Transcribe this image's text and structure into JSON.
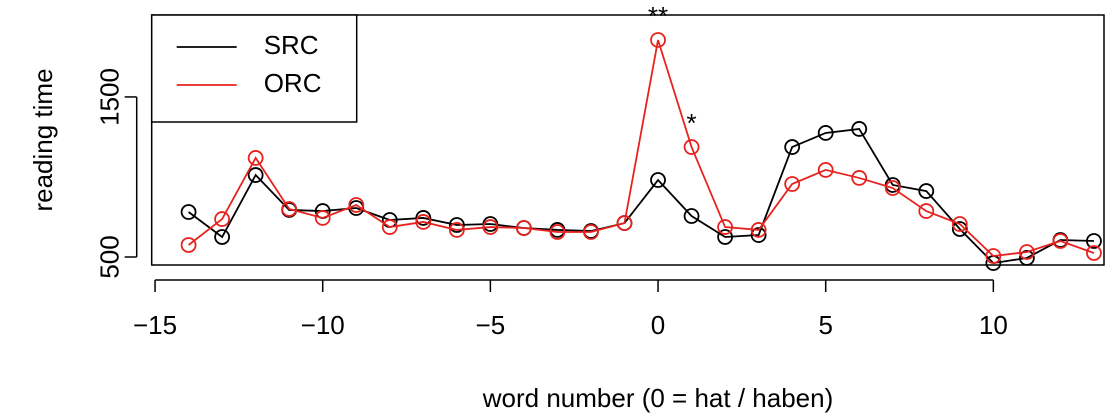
{
  "chart_data": {
    "type": "line",
    "x_label": "word number (0 = hat / haben)",
    "y_label": "reading time",
    "x": [
      -14,
      -13,
      -12,
      -11,
      -10,
      -9,
      -8,
      -7,
      -6,
      -5,
      -4,
      -3,
      -2,
      -1,
      0,
      1,
      2,
      3,
      4,
      5,
      6,
      7,
      8,
      9,
      10,
      11,
      12,
      13
    ],
    "series": [
      {
        "name": "SRC",
        "color": "#000000",
        "values": [
          781,
          625,
          1012,
          794,
          787,
          806,
          731,
          744,
          700,
          706,
          681,
          669,
          662,
          712,
          981,
          756,
          625,
          637,
          1187,
          1275,
          1300,
          950,
          912,
          675,
          462,
          494,
          606,
          600
        ]
      },
      {
        "name": "ORC",
        "color": "#e8231f",
        "values": [
          575,
          737,
          1119,
          800,
          744,
          825,
          687,
          719,
          669,
          687,
          681,
          656,
          656,
          712,
          1856,
          1187,
          687,
          669,
          956,
          1044,
          994,
          931,
          787,
          706,
          506,
          531,
          600,
          525
        ]
      }
    ],
    "annotations": [
      {
        "text": "**",
        "x": 0
      },
      {
        "text": "*",
        "x": 1
      }
    ],
    "xlim": [
      -15.1,
      13.3
    ],
    "xticks": [
      {
        "value": -15,
        "label": "−15"
      },
      {
        "value": -10,
        "label": "−10"
      },
      {
        "value": -5,
        "label": "−5"
      },
      0,
      5,
      10
    ],
    "ylim": [
      450,
      2012
    ],
    "yticks": [
      500,
      1500
    ],
    "legend": "top-left"
  }
}
